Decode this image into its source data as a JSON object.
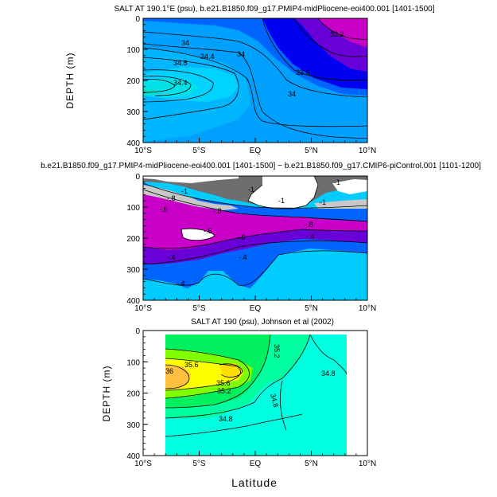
{
  "chart_data": [
    {
      "type": "contour",
      "title": "SALT AT 190.1°E (psu), b.e21.B1850.f09_g17.PMIP4-midPliocene-eoi400.001  [1401-1500]",
      "ylabel": "DEPTH  (m)",
      "xlabel": "",
      "xlim": [
        -10,
        10
      ],
      "ylim": [
        400,
        0
      ],
      "xticks": [
        "10°S",
        "5°S",
        "EQ",
        "5°N",
        "10°N"
      ],
      "yticks": [
        "0",
        "100",
        "200",
        "300",
        "400"
      ],
      "contour_labels": [
        "34",
        "34.4",
        "34.8",
        "34.4",
        "34",
        "33.6",
        "34",
        "33.2"
      ],
      "levels": [
        33.2,
        33.6,
        34.0,
        34.4,
        34.8
      ],
      "colors": [
        "#c800c8",
        "#6a00d8",
        "#0000f0",
        "#0064ff",
        "#00a0ff",
        "#00e0ff",
        "#00ffcc"
      ]
    },
    {
      "type": "contour",
      "title": "b.e21.B1850.f09_g17.PMIP4-midPliocene-eoi400.001  [1401-1500]  −  b.e21.B1850.f09_g17.CMIP6-piControl.001  [1101-1200]",
      "ylabel": "",
      "xlabel": "",
      "xlim": [
        -10,
        10
      ],
      "ylim": [
        400,
        0
      ],
      "xticks": [
        "10°S",
        "5°S",
        "EQ",
        "5°N",
        "10°N"
      ],
      "yticks": [
        "0",
        "100",
        "200",
        "300",
        "400"
      ],
      "contour_labels": [
        "-1",
        "-1",
        "-1",
        "-1",
        "-1",
        "-.8",
        "-.8",
        "-.8",
        "-.6",
        "-.6",
        "-.6",
        "-.4",
        "-.4",
        "-.4",
        "-.4"
      ],
      "levels": [
        -1.0,
        -0.8,
        -0.6,
        -0.4
      ],
      "colors": [
        "#ffffff",
        "#c8c8c8",
        "#6e6e6e",
        "#c800c8",
        "#6a00d8",
        "#0064ff",
        "#00ccff"
      ]
    },
    {
      "type": "contour",
      "title": "SALT AT 190 (psu), Johnson et al (2002)",
      "ylabel": "DEPTH  (m)",
      "xlabel": "Latitude",
      "xlim": [
        -10,
        10
      ],
      "ylim": [
        400,
        0
      ],
      "xticks": [
        "10°S",
        "5°S",
        "EQ",
        "5°N",
        "10°N"
      ],
      "yticks": [
        "0",
        "100",
        "200",
        "300",
        "400"
      ],
      "data_range_lon": [
        -8,
        8
      ],
      "contour_labels": [
        "35.2",
        "35.6",
        "36",
        "35.6",
        "35.2",
        "34.8",
        "34.8",
        "34.8"
      ],
      "levels": [
        34.8,
        35.2,
        35.6,
        36.0
      ],
      "colors": [
        "#00ffe0",
        "#00ffa0",
        "#00f060",
        "#80ff00",
        "#ffff00",
        "#ffc040"
      ]
    }
  ]
}
